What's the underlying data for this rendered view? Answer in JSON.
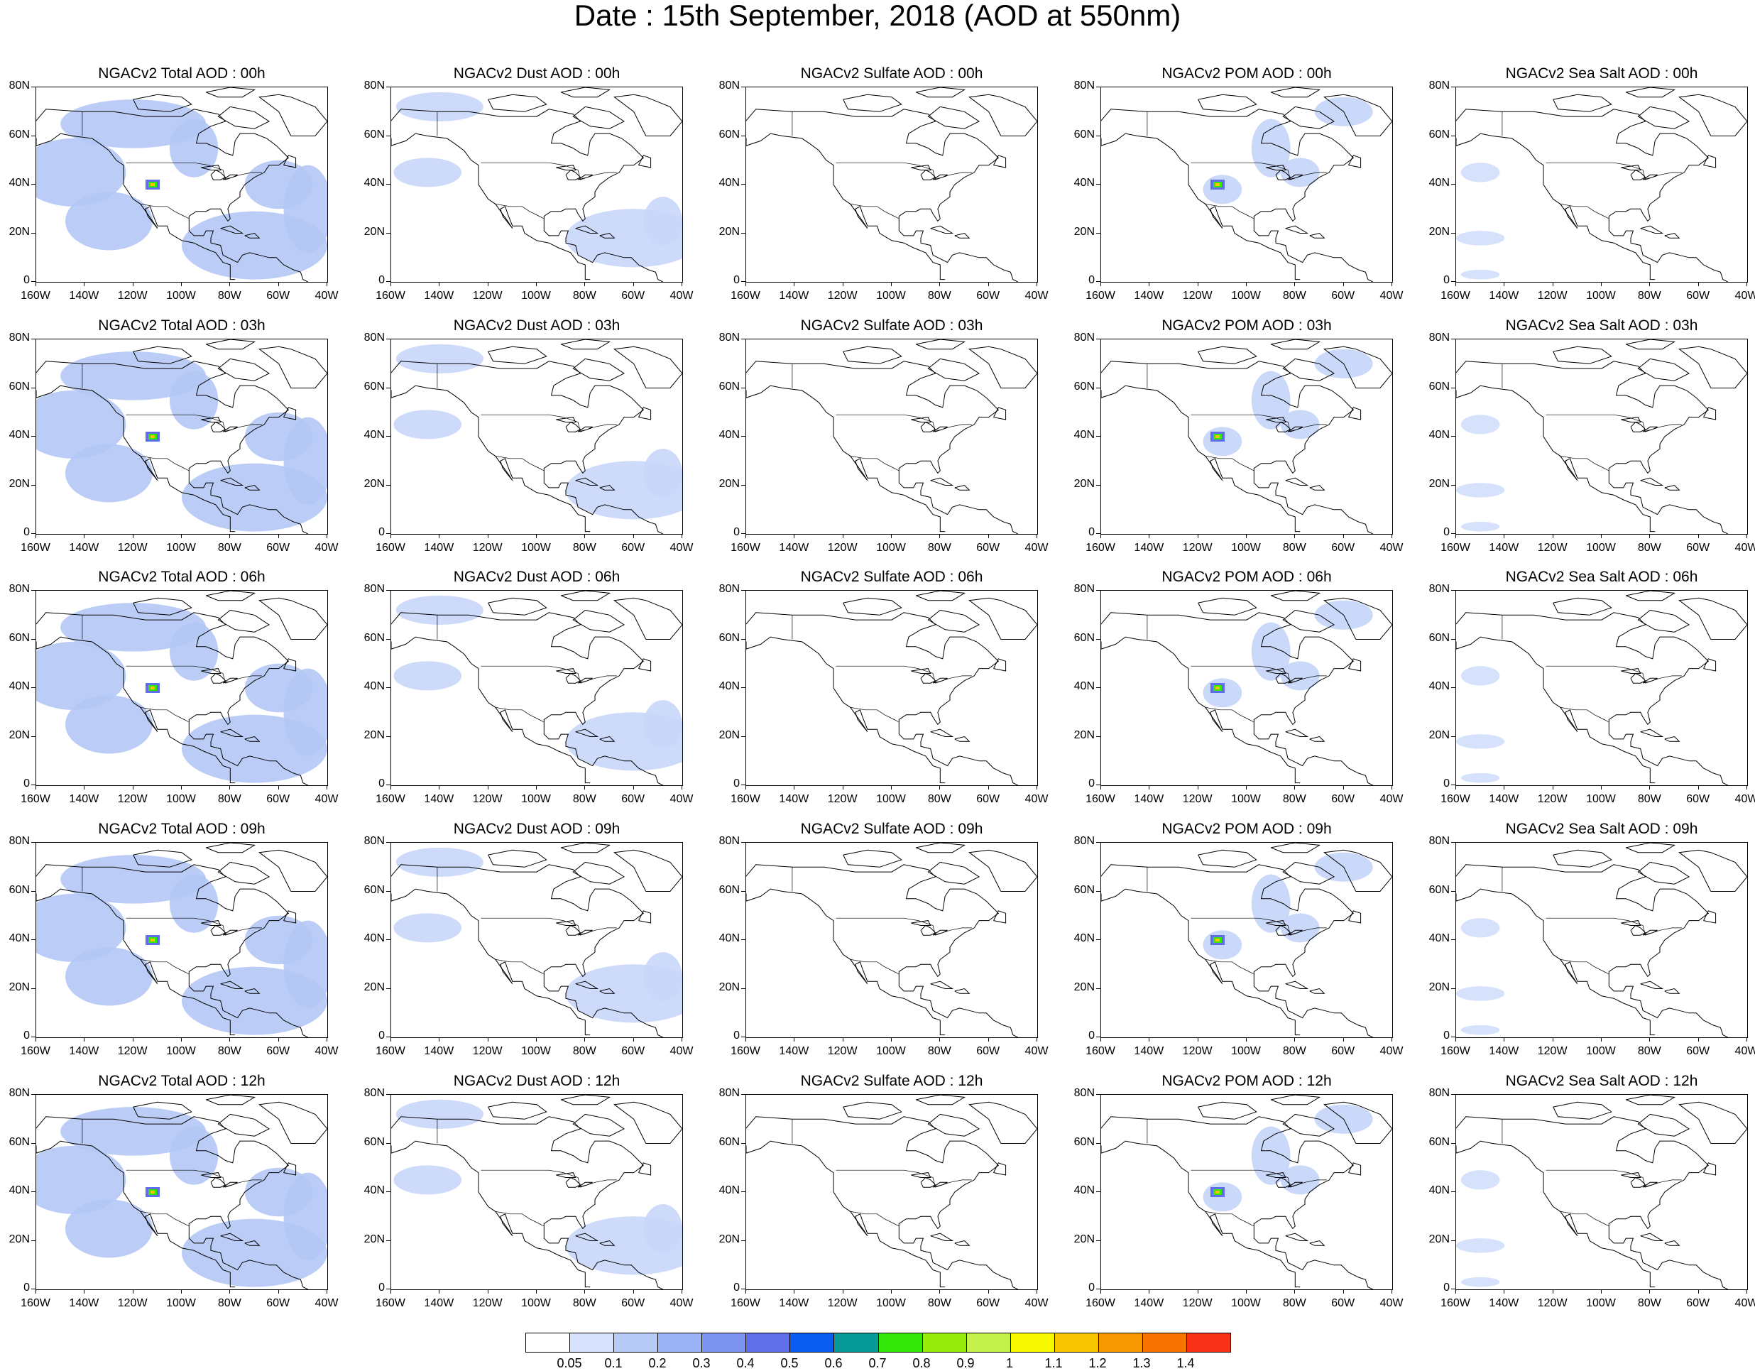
{
  "figure": {
    "title": "Date : 15th September, 2018 (AOD at 550nm)"
  },
  "axes": {
    "lat_ticks": [
      "80N",
      "60N",
      "40N",
      "20N",
      "0"
    ],
    "lon_ticks": [
      "160W",
      "140W",
      "120W",
      "100W",
      "80W",
      "60W",
      "40W"
    ]
  },
  "columns": [
    {
      "id": "total",
      "fill": "#b4c8f5"
    },
    {
      "id": "dust",
      "fill": "#c9d6fa"
    },
    {
      "id": "sulfate",
      "fill": "#dde6fc"
    },
    {
      "id": "pom",
      "fill": "#c4d4f8"
    },
    {
      "id": "seasalt",
      "fill": "#d2defb"
    }
  ],
  "panels": [
    [
      "NGACv2 Total AOD : 00h",
      "NGACv2 Dust AOD : 00h",
      "NGACv2 Sulfate AOD : 00h",
      "NGACv2 POM AOD : 00h",
      "NGACv2 Sea Salt AOD : 00h"
    ],
    [
      "NGACv2 Total AOD : 03h",
      "NGACv2 Dust AOD : 03h",
      "NGACv2 Sulfate AOD : 03h",
      "NGACv2 POM AOD : 03h",
      "NGACv2 Sea Salt AOD : 03h"
    ],
    [
      "NGACv2 Total AOD : 06h",
      "NGACv2 Dust AOD : 06h",
      "NGACv2 Sulfate AOD : 06h",
      "NGACv2 POM AOD : 06h",
      "NGACv2 Sea Salt AOD : 06h"
    ],
    [
      "NGACv2 Total AOD : 09h",
      "NGACv2 Dust AOD : 09h",
      "NGACv2 Sulfate AOD : 09h",
      "NGACv2 POM AOD : 09h",
      "NGACv2 Sea Salt  AOD : 09h"
    ],
    [
      "NGACv2 Total AOD  : 12h",
      "NGACv2 Dust AOD : 12h",
      "NGACv2 Sulfate AOD : 12h",
      "NGACv2 POM  AOD : 12h",
      "NGACv2 Sea Salt  AOD : 12h"
    ]
  ],
  "colorbar": {
    "colors": [
      "#ffffff",
      "#d7e1fb",
      "#b8cbf7",
      "#9ab3f4",
      "#7c93ef",
      "#5f6fea",
      "#0b5cf0",
      "#089a96",
      "#35e80a",
      "#98ec0c",
      "#c4f24a",
      "#f8f800",
      "#f8c400",
      "#f89800",
      "#f87400",
      "#f83018"
    ],
    "labels": [
      "0.05",
      "0.1",
      "0.2",
      "0.3",
      "0.4",
      "0.5",
      "0.6",
      "0.7",
      "0.8",
      "0.9",
      "1",
      "1.1",
      "1.2",
      "1.3",
      "1.4"
    ]
  }
}
